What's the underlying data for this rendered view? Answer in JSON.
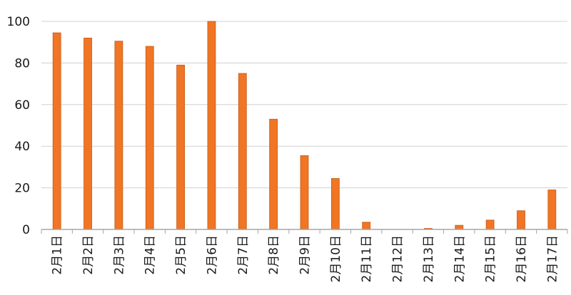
{
  "chart_data": {
    "type": "bar",
    "categories": [
      "2月1日",
      "2月2日",
      "2月3日",
      "2月4日",
      "2月5日",
      "2月6日",
      "2月7日",
      "2月8日",
      "2月9日",
      "2月10日",
      "2月11日",
      "2月12日",
      "2月13日",
      "2月14日",
      "2月15日",
      "2月16日",
      "2月17日"
    ],
    "values": [
      94.5,
      92,
      90.5,
      88,
      79,
      100,
      75,
      53,
      35.5,
      24.5,
      3.5,
      0,
      0.5,
      2,
      4.5,
      9,
      19
    ],
    "title": "",
    "xlabel": "",
    "ylabel": "",
    "ylim": [
      0,
      100
    ],
    "yticks": [
      0,
      20,
      40,
      60,
      80,
      100
    ],
    "grid": true,
    "legend": "none",
    "bar_color": "#f07525",
    "bar_stroke": "#c95a14",
    "grid_color": "#d0d0d0",
    "axis_color": "#a6a6a6"
  }
}
